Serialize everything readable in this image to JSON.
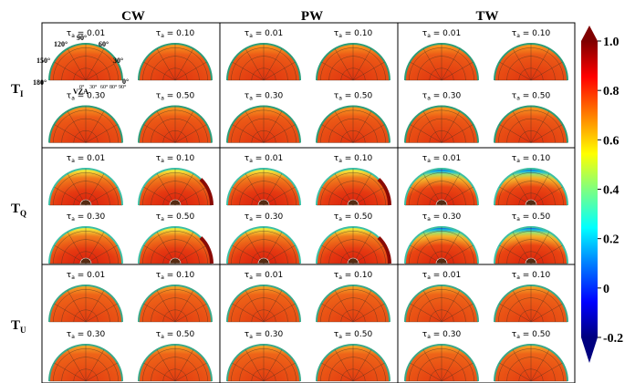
{
  "figure": {
    "columns": [
      {
        "key": "cw",
        "label": "CW"
      },
      {
        "key": "pw",
        "label": "PW"
      },
      {
        "key": "tw",
        "label": "TW"
      }
    ],
    "rows": [
      {
        "key": "ti",
        "base": "T",
        "sub": "I"
      },
      {
        "key": "tq",
        "base": "T",
        "sub": "Q"
      },
      {
        "key": "tu",
        "base": "T",
        "sub": "U"
      }
    ],
    "tau_values": [
      "0.01",
      "0.10",
      "0.30",
      "0.50"
    ],
    "tau_prefix": "τ",
    "tau_sub": "a",
    "tau_eq": " = ",
    "polar_axis": {
      "azimuth_labels": [
        "180°",
        "150°",
        "120°",
        "90°",
        "60°",
        "30°",
        "0°"
      ],
      "vza_label": "VZA",
      "vza_ticks": [
        "0°",
        "30°",
        "60°",
        "80°",
        "90°"
      ]
    }
  },
  "colorbar": {
    "ticks": [
      "1.0",
      "0.8",
      "0.6",
      "0.4",
      "0.2",
      "0",
      "-0.2"
    ],
    "tick_values": [
      1.0,
      0.8,
      0.6,
      0.4,
      0.2,
      0.0,
      -0.2
    ],
    "min": -0.2,
    "max": 1.0,
    "colors": [
      "#00007f",
      "#0000ff",
      "#007fff",
      "#00ffff",
      "#7fff7f",
      "#ffff00",
      "#ff7f00",
      "#ff0000",
      "#7f0000"
    ]
  },
  "panel_colors": {
    "ti": {
      "center": "#e43a12",
      "edge": "#f58a1c",
      "rim": "#2c9c78"
    },
    "tq": {
      "center": "#e02a10",
      "edge": "#f2ec3a",
      "rim": "#3cbfa4"
    },
    "tu": {
      "center": "#e4380f",
      "edge": "#f49b22",
      "rim": "#3aa888"
    }
  }
}
